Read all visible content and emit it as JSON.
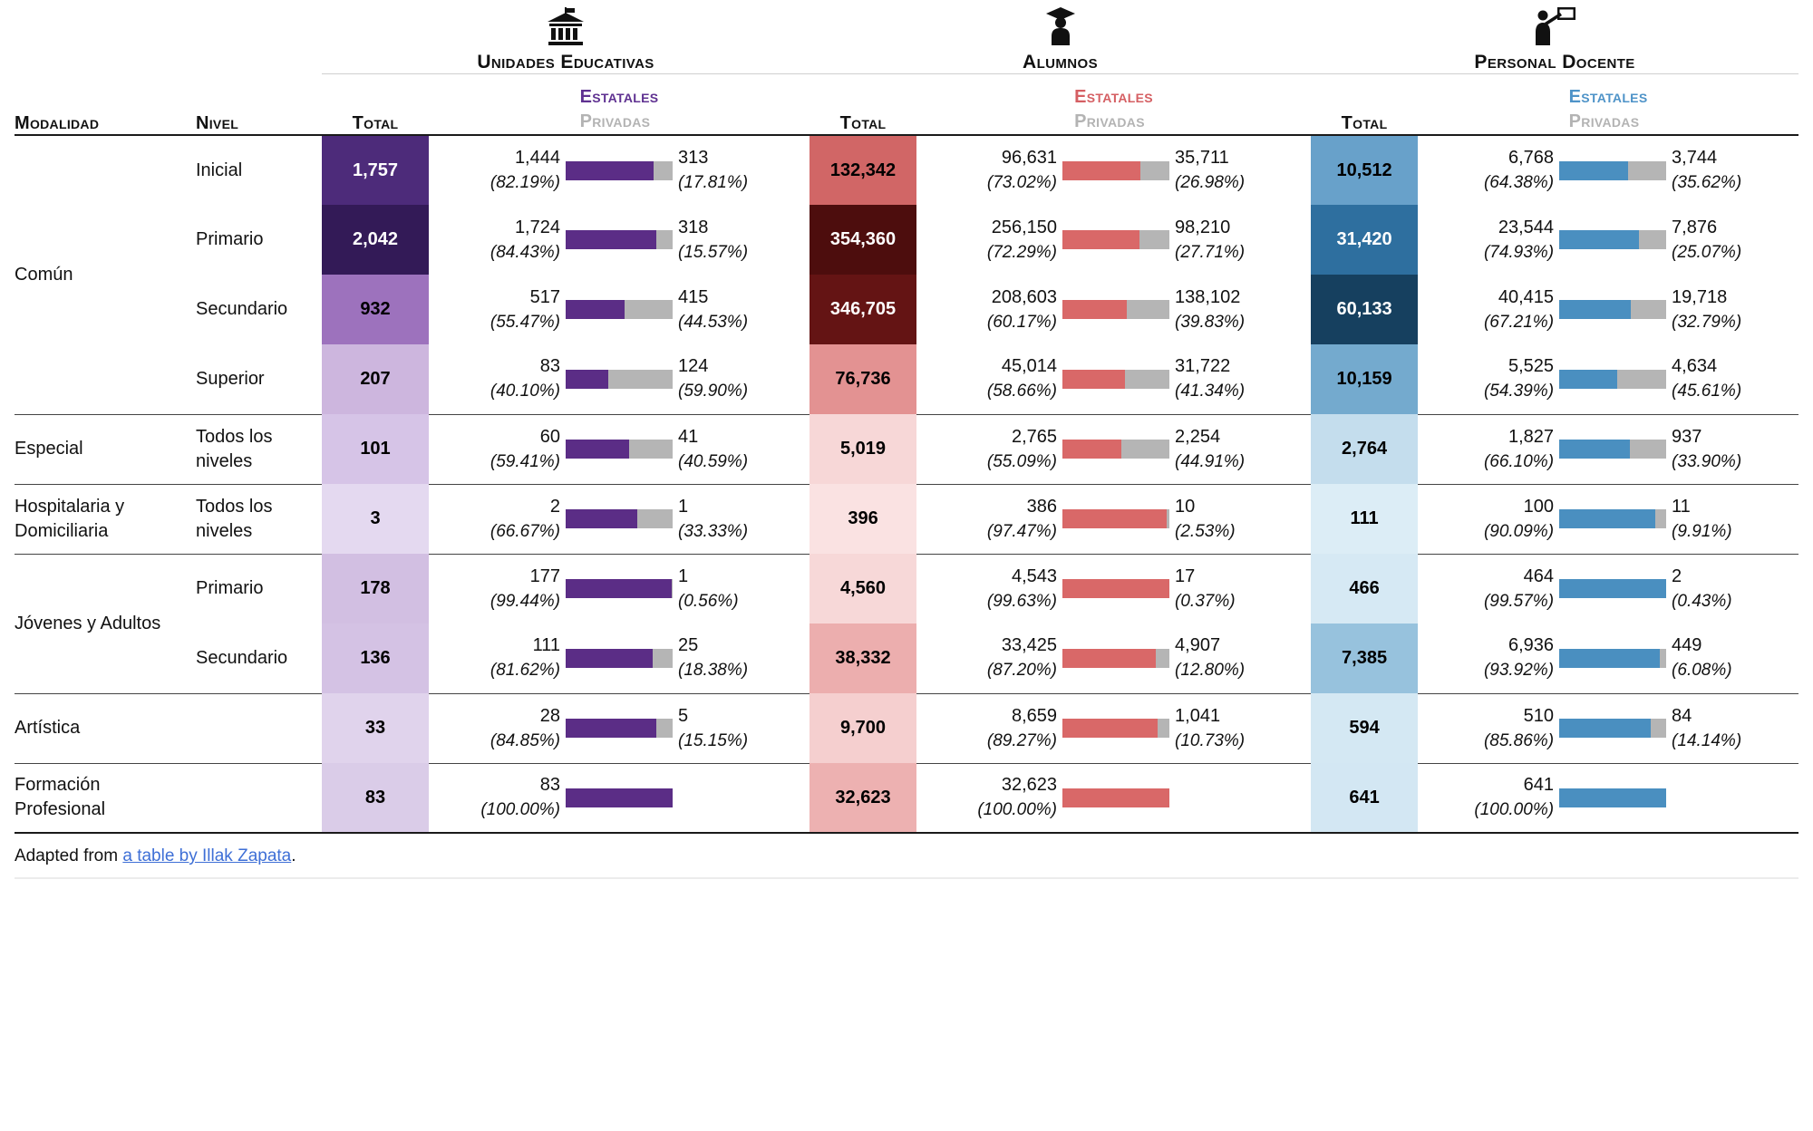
{
  "chart_data": {
    "type": "table",
    "col_labels": {
      "modalidad": "Modalidad",
      "nivel": "Nivel",
      "total": "Total",
      "estatales": "Estatales",
      "privadas": "Privadas"
    },
    "groups": [
      {
        "id": "ue",
        "title": "Unidades Educativas",
        "icon": "school-icon",
        "accent": "#5f3191",
        "bar_color": "#5b2d86"
      },
      {
        "id": "al",
        "title": "Alumnos",
        "icon": "graduate-icon",
        "accent": "#d55f63",
        "bar_color": "#d96868"
      },
      {
        "id": "pd",
        "title": "Personal Docente",
        "icon": "teacher-icon",
        "accent": "#4e93c8",
        "bar_color": "#4a8fc0"
      }
    ],
    "privadas_color": "#b5b5b5",
    "privadas_label_color": "#b3b3b3",
    "rows": [
      {
        "modalidad": "Común",
        "rowspan": 4,
        "nivel": "Inicial",
        "group_start": true,
        "ue": {
          "total": "1,757",
          "bg": "#4d2b7a",
          "fg": "#ffffff",
          "est": "1,444",
          "est_pct": "(82.19%)",
          "priv": "313",
          "priv_pct": "(17.81%)",
          "pct": 82.19
        },
        "al": {
          "total": "132,342",
          "bg": "#d16666",
          "fg": "#000000",
          "est": "96,631",
          "est_pct": "(73.02%)",
          "priv": "35,711",
          "priv_pct": "(26.98%)",
          "pct": 73.02
        },
        "pd": {
          "total": "10,512",
          "bg": "#68a1ca",
          "fg": "#000000",
          "est": "6,768",
          "est_pct": "(64.38%)",
          "priv": "3,744",
          "priv_pct": "(35.62%)",
          "pct": 64.38
        }
      },
      {
        "modalidad": null,
        "nivel": "Primario",
        "group_start": false,
        "ue": {
          "total": "2,042",
          "bg": "#331a57",
          "fg": "#ffffff",
          "est": "1,724",
          "est_pct": "(84.43%)",
          "priv": "318",
          "priv_pct": "(15.57%)",
          "pct": 84.43
        },
        "al": {
          "total": "354,360",
          "bg": "#4d0d0d",
          "fg": "#ffffff",
          "est": "256,150",
          "est_pct": "(72.29%)",
          "priv": "98,210",
          "priv_pct": "(27.71%)",
          "pct": 72.29
        },
        "pd": {
          "total": "31,420",
          "bg": "#2e6f9f",
          "fg": "#ffffff",
          "est": "23,544",
          "est_pct": "(74.93%)",
          "priv": "7,876",
          "priv_pct": "(25.07%)",
          "pct": 74.93
        }
      },
      {
        "modalidad": null,
        "nivel": "Secundario",
        "group_start": false,
        "ue": {
          "total": "932",
          "bg": "#9d72bd",
          "fg": "#000000",
          "est": "517",
          "est_pct": "(55.47%)",
          "priv": "415",
          "priv_pct": "(44.53%)",
          "pct": 55.47
        },
        "al": {
          "total": "346,705",
          "bg": "#641414",
          "fg": "#ffffff",
          "est": "208,603",
          "est_pct": "(60.17%)",
          "priv": "138,102",
          "priv_pct": "(39.83%)",
          "pct": 60.17
        },
        "pd": {
          "total": "60,133",
          "bg": "#16405f",
          "fg": "#ffffff",
          "est": "40,415",
          "est_pct": "(67.21%)",
          "priv": "19,718",
          "priv_pct": "(32.79%)",
          "pct": 67.21
        }
      },
      {
        "modalidad": null,
        "nivel": "Superior",
        "group_start": false,
        "ue": {
          "total": "207",
          "bg": "#cdb6de",
          "fg": "#000000",
          "est": "83",
          "est_pct": "(40.10%)",
          "priv": "124",
          "priv_pct": "(59.90%)",
          "pct": 40.1
        },
        "al": {
          "total": "76,736",
          "bg": "#e39292",
          "fg": "#000000",
          "est": "45,014",
          "est_pct": "(58.66%)",
          "priv": "31,722",
          "priv_pct": "(41.34%)",
          "pct": 58.66
        },
        "pd": {
          "total": "10,159",
          "bg": "#74aace",
          "fg": "#000000",
          "est": "5,525",
          "est_pct": "(54.39%)",
          "priv": "4,634",
          "priv_pct": "(45.61%)",
          "pct": 54.39
        }
      },
      {
        "modalidad": "Especial",
        "rowspan": 1,
        "nivel": "Todos los niveles",
        "group_start": true,
        "ue": {
          "total": "101",
          "bg": "#d6c4e7",
          "fg": "#000000",
          "est": "60",
          "est_pct": "(59.41%)",
          "priv": "41",
          "priv_pct": "(40.59%)",
          "pct": 59.41
        },
        "al": {
          "total": "5,019",
          "bg": "#f7d7d7",
          "fg": "#000000",
          "est": "2,765",
          "est_pct": "(55.09%)",
          "priv": "2,254",
          "priv_pct": "(44.91%)",
          "pct": 55.09
        },
        "pd": {
          "total": "2,764",
          "bg": "#c4dded",
          "fg": "#000000",
          "est": "1,827",
          "est_pct": "(66.10%)",
          "priv": "937",
          "priv_pct": "(33.90%)",
          "pct": 66.1
        }
      },
      {
        "modalidad": "Hospitalaria y Domiciliaria",
        "rowspan": 1,
        "nivel": "Todos los niveles",
        "group_start": true,
        "ue": {
          "total": "3",
          "bg": "#e4d9f0",
          "fg": "#000000",
          "est": "2",
          "est_pct": "(66.67%)",
          "priv": "1",
          "priv_pct": "(33.33%)",
          "pct": 66.67
        },
        "al": {
          "total": "396",
          "bg": "#fae2e2",
          "fg": "#000000",
          "est": "386",
          "est_pct": "(97.47%)",
          "priv": "10",
          "priv_pct": "(2.53%)",
          "pct": 97.47
        },
        "pd": {
          "total": "111",
          "bg": "#dcedf6",
          "fg": "#000000",
          "est": "100",
          "est_pct": "(90.09%)",
          "priv": "11",
          "priv_pct": "(9.91%)",
          "pct": 90.09
        }
      },
      {
        "modalidad": "Jóvenes y Adultos",
        "rowspan": 2,
        "nivel": "Primario",
        "group_start": true,
        "ue": {
          "total": "178",
          "bg": "#d2bfe2",
          "fg": "#000000",
          "est": "177",
          "est_pct": "(99.44%)",
          "priv": "1",
          "priv_pct": "(0.56%)",
          "pct": 99.44
        },
        "al": {
          "total": "4,560",
          "bg": "#f7d8d8",
          "fg": "#000000",
          "est": "4,543",
          "est_pct": "(99.63%)",
          "priv": "17",
          "priv_pct": "(0.37%)",
          "pct": 99.63
        },
        "pd": {
          "total": "466",
          "bg": "#d6e9f4",
          "fg": "#000000",
          "est": "464",
          "est_pct": "(99.57%)",
          "priv": "2",
          "priv_pct": "(0.43%)",
          "pct": 99.57
        }
      },
      {
        "modalidad": null,
        "nivel": "Secundario",
        "group_start": false,
        "ue": {
          "total": "136",
          "bg": "#d4c2e4",
          "fg": "#000000",
          "est": "111",
          "est_pct": "(81.62%)",
          "priv": "25",
          "priv_pct": "(18.38%)",
          "pct": 81.62
        },
        "al": {
          "total": "38,332",
          "bg": "#ecaeae",
          "fg": "#000000",
          "est": "33,425",
          "est_pct": "(87.20%)",
          "priv": "4,907",
          "priv_pct": "(12.80%)",
          "pct": 87.2
        },
        "pd": {
          "total": "7,385",
          "bg": "#97c2dd",
          "fg": "#000000",
          "est": "6,936",
          "est_pct": "(93.92%)",
          "priv": "449",
          "priv_pct": "(6.08%)",
          "pct": 93.92
        }
      },
      {
        "modalidad": "Artística",
        "rowspan": 1,
        "nivel": "",
        "group_start": true,
        "ue": {
          "total": "33",
          "bg": "#e0d3ec",
          "fg": "#000000",
          "est": "28",
          "est_pct": "(84.85%)",
          "priv": "5",
          "priv_pct": "(15.15%)",
          "pct": 84.85
        },
        "al": {
          "total": "9,700",
          "bg": "#f5cfcf",
          "fg": "#000000",
          "est": "8,659",
          "est_pct": "(89.27%)",
          "priv": "1,041",
          "priv_pct": "(10.73%)",
          "pct": 89.27
        },
        "pd": {
          "total": "594",
          "bg": "#d4e8f3",
          "fg": "#000000",
          "est": "510",
          "est_pct": "(85.86%)",
          "priv": "84",
          "priv_pct": "(14.14%)",
          "pct": 85.86
        }
      },
      {
        "modalidad": "Formación Profesional",
        "rowspan": 1,
        "nivel": "",
        "group_start": true,
        "ue": {
          "total": "83",
          "bg": "#dacce8",
          "fg": "#000000",
          "est": "83",
          "est_pct": "(100.00%)",
          "priv": "",
          "priv_pct": "",
          "pct": 100
        },
        "al": {
          "total": "32,623",
          "bg": "#edb1b1",
          "fg": "#000000",
          "est": "32,623",
          "est_pct": "(100.00%)",
          "priv": "",
          "priv_pct": "",
          "pct": 100
        },
        "pd": {
          "total": "641",
          "bg": "#d3e7f3",
          "fg": "#000000",
          "est": "641",
          "est_pct": "(100.00%)",
          "priv": "",
          "priv_pct": "",
          "pct": 100
        }
      }
    ]
  },
  "footer": {
    "prefix": "Adapted from ",
    "link_text": "a table by Illak Zapata",
    "suffix": ".",
    "link_color": "#3e6fd6"
  }
}
